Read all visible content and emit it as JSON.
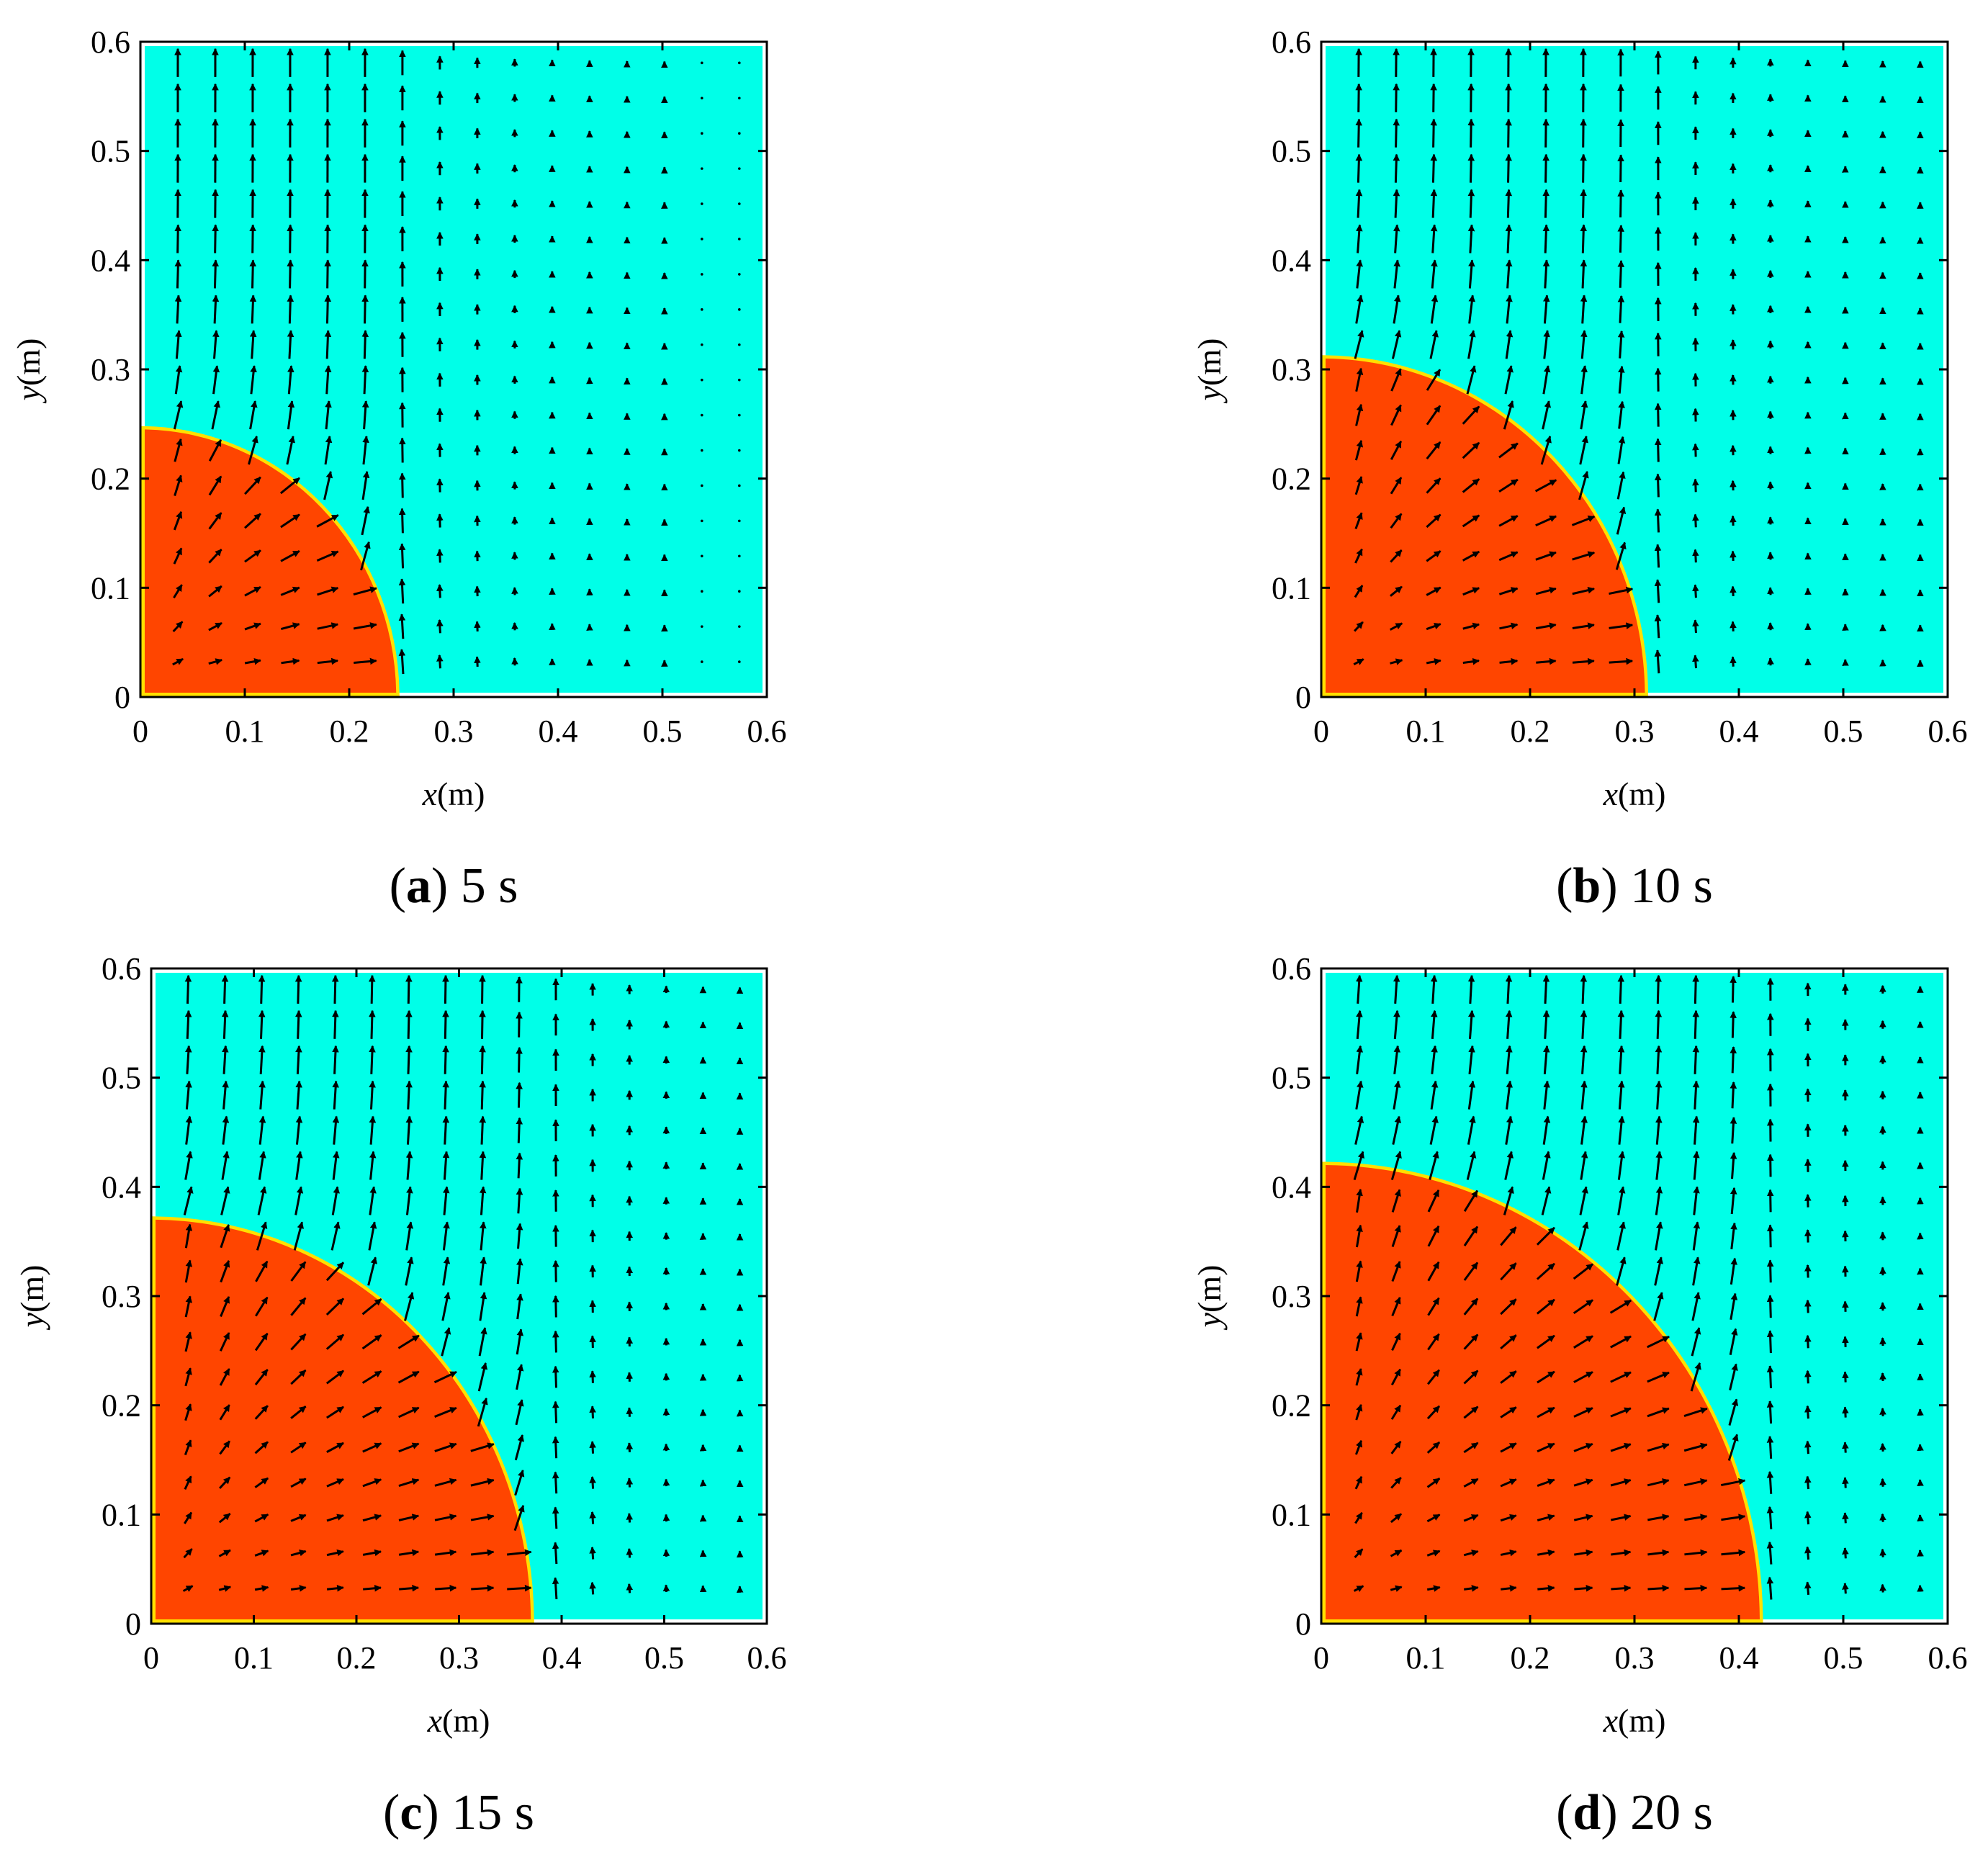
{
  "colors": {
    "background_fluid": "#00ffe8",
    "dense_fluid": "#ff4500",
    "interface": "#ffe000",
    "arrow": "#000000"
  },
  "chart_data": [
    {
      "type": "vector-field",
      "panel": "a",
      "caption_letter": "a",
      "caption_rest": " 5 s",
      "xlabel_var": "x",
      "xlabel_unit": "(m)",
      "ylabel_var": "y",
      "ylabel_unit": "(m)",
      "xlim": [
        0,
        0.6
      ],
      "ylim": [
        0,
        0.6
      ],
      "xticks": [
        "0",
        "0.1",
        "0.2",
        "0.3",
        "0.4",
        "0.5",
        "0.6"
      ],
      "yticks": [
        "0",
        "0.1",
        "0.2",
        "0.3",
        "0.4",
        "0.5",
        "0.6"
      ],
      "front_radius_m": 0.245
    },
    {
      "type": "vector-field",
      "panel": "b",
      "caption_letter": "b",
      "caption_rest": " 10 s",
      "xlabel_var": "x",
      "xlabel_unit": "(m)",
      "ylabel_var": "y",
      "ylabel_unit": "(m)",
      "xlim": [
        0,
        0.6
      ],
      "ylim": [
        0,
        0.6
      ],
      "xticks": [
        "0",
        "0.1",
        "0.2",
        "0.3",
        "0.4",
        "0.5",
        "0.6"
      ],
      "yticks": [
        "0",
        "0.1",
        "0.2",
        "0.3",
        "0.4",
        "0.5",
        "0.6"
      ],
      "front_radius_m": 0.31
    },
    {
      "type": "vector-field",
      "panel": "c",
      "caption_letter": "c",
      "caption_rest": " 15 s",
      "xlabel_var": "x",
      "xlabel_unit": "(m)",
      "ylabel_var": "y",
      "ylabel_unit": "(m)",
      "xlim": [
        0,
        0.6
      ],
      "ylim": [
        0,
        0.6
      ],
      "xticks": [
        "0",
        "0.1",
        "0.2",
        "0.3",
        "0.4",
        "0.5",
        "0.6"
      ],
      "yticks": [
        "0",
        "0.1",
        "0.2",
        "0.3",
        "0.4",
        "0.5",
        "0.6"
      ],
      "front_radius_m": 0.37
    },
    {
      "type": "vector-field",
      "panel": "d",
      "caption_letter": "d",
      "caption_rest": " 20 s",
      "xlabel_var": "x",
      "xlabel_unit": "(m)",
      "ylabel_var": "y",
      "ylabel_unit": "(m)",
      "xlim": [
        0,
        0.6
      ],
      "ylim": [
        0,
        0.6
      ],
      "xticks": [
        "0",
        "0.1",
        "0.2",
        "0.3",
        "0.4",
        "0.5",
        "0.6"
      ],
      "yticks": [
        "0",
        "0.1",
        "0.2",
        "0.3",
        "0.4",
        "0.5",
        "0.6"
      ],
      "front_radius_m": 0.42
    }
  ]
}
